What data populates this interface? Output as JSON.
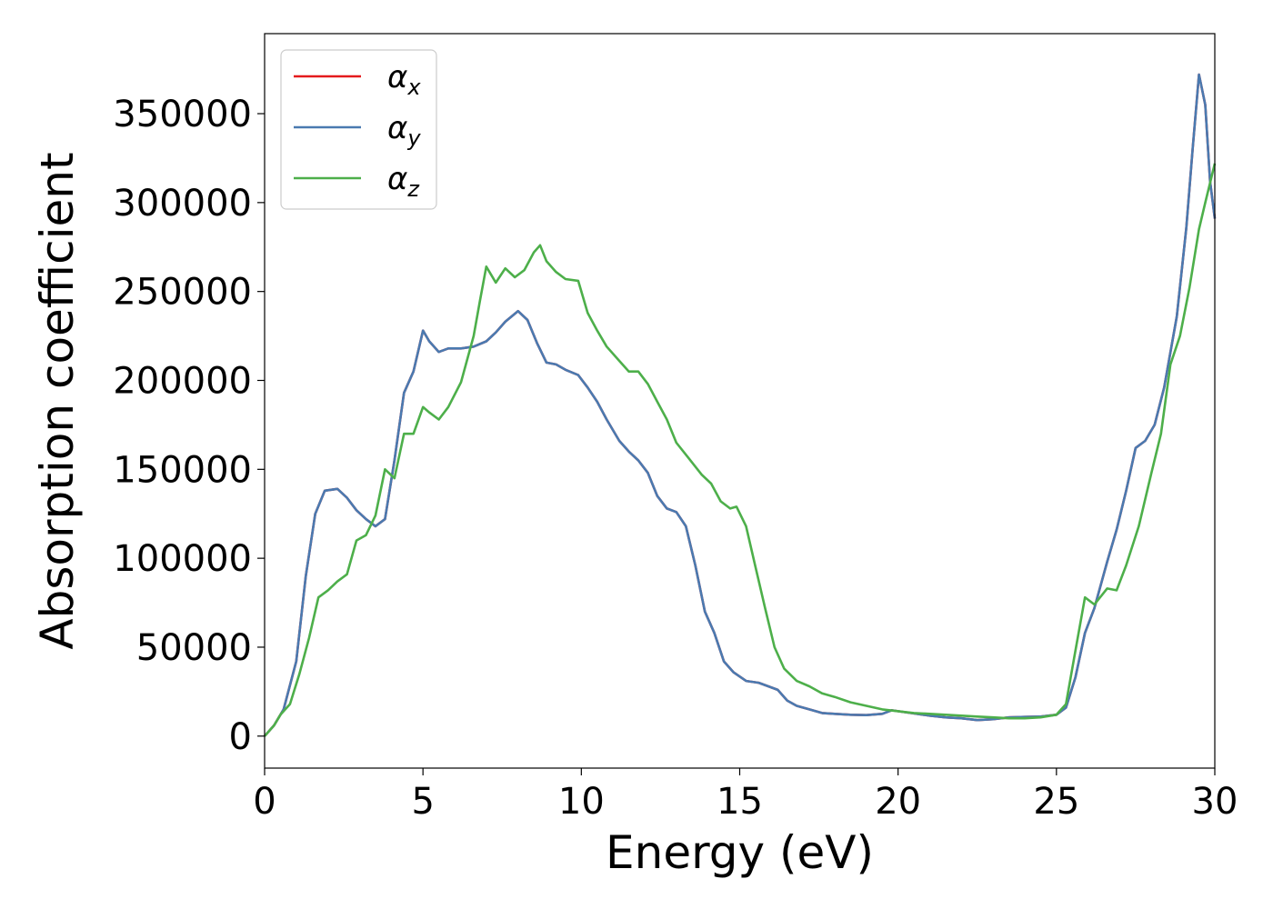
{
  "chart_data": {
    "type": "line",
    "title": "",
    "xlabel": "Energy (eV)",
    "ylabel": "Absorption coefficient",
    "xlim": [
      0,
      30
    ],
    "ylim": [
      -18000,
      395000
    ],
    "x_ticks": [
      0,
      5,
      10,
      15,
      20,
      25,
      30
    ],
    "y_ticks": [
      0,
      50000,
      100000,
      150000,
      200000,
      250000,
      300000,
      350000
    ],
    "grid": false,
    "legend_position": "top-left",
    "series": [
      {
        "name": "α",
        "subscript": "x",
        "color": "#e41a1c",
        "points": [
          [
            0,
            0
          ],
          [
            0.3,
            6000
          ],
          [
            0.6,
            15000
          ],
          [
            1.0,
            42000
          ],
          [
            1.3,
            90000
          ],
          [
            1.6,
            125000
          ],
          [
            1.9,
            138000
          ],
          [
            2.3,
            139000
          ],
          [
            2.6,
            134000
          ],
          [
            2.9,
            127000
          ],
          [
            3.2,
            122000
          ],
          [
            3.5,
            118000
          ],
          [
            3.8,
            122000
          ],
          [
            4.1,
            155000
          ],
          [
            4.4,
            193000
          ],
          [
            4.7,
            205000
          ],
          [
            5.0,
            228000
          ],
          [
            5.2,
            222000
          ],
          [
            5.5,
            216000
          ],
          [
            5.8,
            218000
          ],
          [
            6.2,
            218000
          ],
          [
            6.6,
            219000
          ],
          [
            7.0,
            222000
          ],
          [
            7.3,
            227000
          ],
          [
            7.6,
            233000
          ],
          [
            8.0,
            239000
          ],
          [
            8.3,
            234000
          ],
          [
            8.6,
            221000
          ],
          [
            8.9,
            210000
          ],
          [
            9.2,
            209000
          ],
          [
            9.5,
            206000
          ],
          [
            9.9,
            203000
          ],
          [
            10.2,
            196000
          ],
          [
            10.5,
            188000
          ],
          [
            10.8,
            178000
          ],
          [
            11.2,
            166000
          ],
          [
            11.5,
            160000
          ],
          [
            11.8,
            155000
          ],
          [
            12.1,
            148000
          ],
          [
            12.4,
            135000
          ],
          [
            12.7,
            128000
          ],
          [
            13.0,
            126000
          ],
          [
            13.3,
            118000
          ],
          [
            13.6,
            96000
          ],
          [
            13.9,
            70000
          ],
          [
            14.2,
            58000
          ],
          [
            14.5,
            42000
          ],
          [
            14.8,
            36000
          ],
          [
            15.2,
            31000
          ],
          [
            15.6,
            30000
          ],
          [
            15.9,
            28000
          ],
          [
            16.2,
            26000
          ],
          [
            16.5,
            20000
          ],
          [
            16.8,
            17000
          ],
          [
            17.2,
            15000
          ],
          [
            17.6,
            13000
          ],
          [
            18.0,
            12500
          ],
          [
            18.5,
            12000
          ],
          [
            19.0,
            11800
          ],
          [
            19.5,
            12500
          ],
          [
            19.8,
            14500
          ],
          [
            20.2,
            13500
          ],
          [
            20.6,
            12500
          ],
          [
            21.0,
            11500
          ],
          [
            21.5,
            10500
          ],
          [
            22.0,
            10000
          ],
          [
            22.5,
            9000
          ],
          [
            23.0,
            9500
          ],
          [
            23.5,
            10500
          ],
          [
            24.0,
            10800
          ],
          [
            24.5,
            11000
          ],
          [
            25.0,
            12000
          ],
          [
            25.3,
            16000
          ],
          [
            25.6,
            33000
          ],
          [
            25.9,
            58000
          ],
          [
            26.2,
            72000
          ],
          [
            26.6,
            98000
          ],
          [
            26.9,
            116000
          ],
          [
            27.2,
            138000
          ],
          [
            27.5,
            162000
          ],
          [
            27.8,
            166000
          ],
          [
            28.1,
            175000
          ],
          [
            28.4,
            196000
          ],
          [
            28.8,
            236000
          ],
          [
            29.1,
            286000
          ],
          [
            29.3,
            330000
          ],
          [
            29.5,
            372000
          ],
          [
            29.7,
            355000
          ],
          [
            29.85,
            312000
          ],
          [
            30.0,
            291000
          ]
        ]
      },
      {
        "name": "α",
        "subscript": "y",
        "color": "#4a7ab0",
        "points": [
          [
            0,
            0
          ],
          [
            0.3,
            6000
          ],
          [
            0.6,
            15000
          ],
          [
            1.0,
            42000
          ],
          [
            1.3,
            90000
          ],
          [
            1.6,
            125000
          ],
          [
            1.9,
            138000
          ],
          [
            2.3,
            139000
          ],
          [
            2.6,
            134000
          ],
          [
            2.9,
            127000
          ],
          [
            3.2,
            122000
          ],
          [
            3.5,
            118000
          ],
          [
            3.8,
            122000
          ],
          [
            4.1,
            155000
          ],
          [
            4.4,
            193000
          ],
          [
            4.7,
            205000
          ],
          [
            5.0,
            228000
          ],
          [
            5.2,
            222000
          ],
          [
            5.5,
            216000
          ],
          [
            5.8,
            218000
          ],
          [
            6.2,
            218000
          ],
          [
            6.6,
            219000
          ],
          [
            7.0,
            222000
          ],
          [
            7.3,
            227000
          ],
          [
            7.6,
            233000
          ],
          [
            8.0,
            239000
          ],
          [
            8.3,
            234000
          ],
          [
            8.6,
            221000
          ],
          [
            8.9,
            210000
          ],
          [
            9.2,
            209000
          ],
          [
            9.5,
            206000
          ],
          [
            9.9,
            203000
          ],
          [
            10.2,
            196000
          ],
          [
            10.5,
            188000
          ],
          [
            10.8,
            178000
          ],
          [
            11.2,
            166000
          ],
          [
            11.5,
            160000
          ],
          [
            11.8,
            155000
          ],
          [
            12.1,
            148000
          ],
          [
            12.4,
            135000
          ],
          [
            12.7,
            128000
          ],
          [
            13.0,
            126000
          ],
          [
            13.3,
            118000
          ],
          [
            13.6,
            96000
          ],
          [
            13.9,
            70000
          ],
          [
            14.2,
            58000
          ],
          [
            14.5,
            42000
          ],
          [
            14.8,
            36000
          ],
          [
            15.2,
            31000
          ],
          [
            15.6,
            30000
          ],
          [
            15.9,
            28000
          ],
          [
            16.2,
            26000
          ],
          [
            16.5,
            20000
          ],
          [
            16.8,
            17000
          ],
          [
            17.2,
            15000
          ],
          [
            17.6,
            13000
          ],
          [
            18.0,
            12500
          ],
          [
            18.5,
            12000
          ],
          [
            19.0,
            11800
          ],
          [
            19.5,
            12500
          ],
          [
            19.8,
            14500
          ],
          [
            20.2,
            13500
          ],
          [
            20.6,
            12500
          ],
          [
            21.0,
            11500
          ],
          [
            21.5,
            10500
          ],
          [
            22.0,
            10000
          ],
          [
            22.5,
            9000
          ],
          [
            23.0,
            9500
          ],
          [
            23.5,
            10500
          ],
          [
            24.0,
            10800
          ],
          [
            24.5,
            11000
          ],
          [
            25.0,
            12000
          ],
          [
            25.3,
            16000
          ],
          [
            25.6,
            33000
          ],
          [
            25.9,
            58000
          ],
          [
            26.2,
            72000
          ],
          [
            26.6,
            98000
          ],
          [
            26.9,
            116000
          ],
          [
            27.2,
            138000
          ],
          [
            27.5,
            162000
          ],
          [
            27.8,
            166000
          ],
          [
            28.1,
            175000
          ],
          [
            28.4,
            196000
          ],
          [
            28.8,
            236000
          ],
          [
            29.1,
            286000
          ],
          [
            29.3,
            330000
          ],
          [
            29.5,
            372000
          ],
          [
            29.7,
            355000
          ],
          [
            29.85,
            312000
          ],
          [
            30.0,
            291000
          ]
        ]
      },
      {
        "name": "α",
        "subscript": "z",
        "color": "#4daf4a",
        "points": [
          [
            0,
            0
          ],
          [
            0.3,
            6000
          ],
          [
            0.5,
            12000
          ],
          [
            0.8,
            18000
          ],
          [
            1.1,
            35000
          ],
          [
            1.4,
            55000
          ],
          [
            1.7,
            78000
          ],
          [
            2.0,
            82000
          ],
          [
            2.3,
            87000
          ],
          [
            2.6,
            91000
          ],
          [
            2.9,
            110000
          ],
          [
            3.2,
            113000
          ],
          [
            3.5,
            124000
          ],
          [
            3.8,
            150000
          ],
          [
            4.1,
            145000
          ],
          [
            4.4,
            170000
          ],
          [
            4.7,
            170000
          ],
          [
            5.0,
            185000
          ],
          [
            5.2,
            182000
          ],
          [
            5.5,
            178000
          ],
          [
            5.8,
            185000
          ],
          [
            6.2,
            199000
          ],
          [
            6.6,
            225000
          ],
          [
            6.8,
            245000
          ],
          [
            7.0,
            264000
          ],
          [
            7.3,
            255000
          ],
          [
            7.6,
            263000
          ],
          [
            7.9,
            258000
          ],
          [
            8.2,
            262000
          ],
          [
            8.5,
            272000
          ],
          [
            8.7,
            276000
          ],
          [
            8.9,
            267000
          ],
          [
            9.2,
            261000
          ],
          [
            9.5,
            257000
          ],
          [
            9.9,
            256000
          ],
          [
            10.2,
            238000
          ],
          [
            10.5,
            228000
          ],
          [
            10.8,
            219000
          ],
          [
            11.2,
            211000
          ],
          [
            11.5,
            205000
          ],
          [
            11.8,
            205000
          ],
          [
            12.1,
            198000
          ],
          [
            12.4,
            188000
          ],
          [
            12.7,
            178000
          ],
          [
            13.0,
            165000
          ],
          [
            13.4,
            156000
          ],
          [
            13.8,
            147000
          ],
          [
            14.1,
            142000
          ],
          [
            14.4,
            132000
          ],
          [
            14.7,
            128000
          ],
          [
            14.9,
            129000
          ],
          [
            15.2,
            118000
          ],
          [
            15.5,
            95000
          ],
          [
            15.8,
            72000
          ],
          [
            16.1,
            50000
          ],
          [
            16.4,
            38000
          ],
          [
            16.8,
            31000
          ],
          [
            17.2,
            28000
          ],
          [
            17.6,
            24000
          ],
          [
            18.0,
            22000
          ],
          [
            18.5,
            19000
          ],
          [
            19.0,
            17000
          ],
          [
            19.5,
            15000
          ],
          [
            20.0,
            14000
          ],
          [
            20.5,
            13000
          ],
          [
            21.0,
            12500
          ],
          [
            21.5,
            12000
          ],
          [
            22.0,
            11500
          ],
          [
            22.5,
            11000
          ],
          [
            23.0,
            10500
          ],
          [
            23.5,
            10000
          ],
          [
            24.0,
            10000
          ],
          [
            24.5,
            10500
          ],
          [
            25.0,
            12000
          ],
          [
            25.3,
            18000
          ],
          [
            25.6,
            48000
          ],
          [
            25.9,
            78000
          ],
          [
            26.2,
            74000
          ],
          [
            26.6,
            83000
          ],
          [
            26.9,
            82000
          ],
          [
            27.2,
            96000
          ],
          [
            27.6,
            118000
          ],
          [
            28.0,
            148000
          ],
          [
            28.3,
            170000
          ],
          [
            28.6,
            209000
          ],
          [
            28.9,
            225000
          ],
          [
            29.2,
            252000
          ],
          [
            29.5,
            285000
          ],
          [
            29.7,
            300000
          ],
          [
            30.0,
            322000
          ]
        ]
      }
    ]
  }
}
